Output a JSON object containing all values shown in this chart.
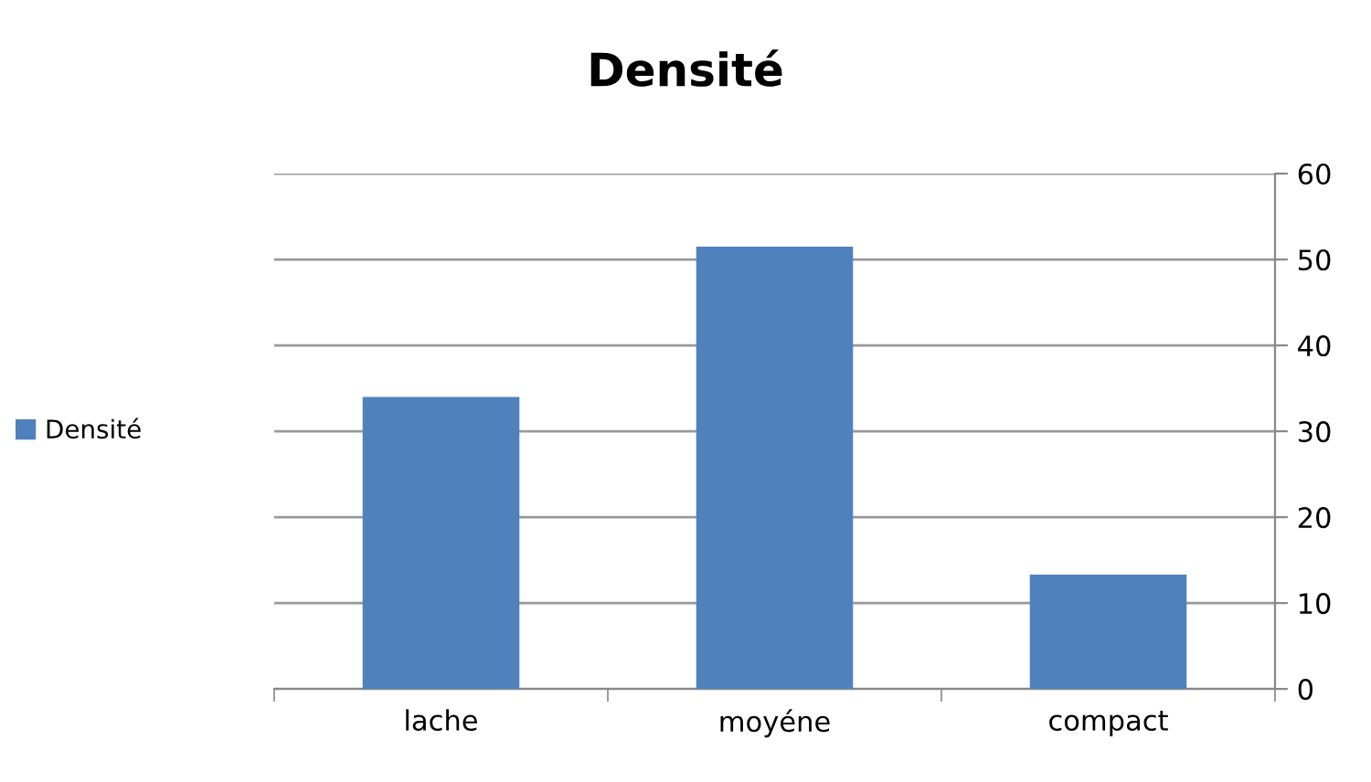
{
  "chart_data": {
    "type": "bar",
    "title": "Densité",
    "categories": [
      "lache",
      "moyéne",
      "compact"
    ],
    "series": [
      {
        "name": "Densité",
        "color": "#4f81bd",
        "values": [
          34,
          51.5,
          13.3
        ]
      }
    ],
    "ylim": [
      0,
      60
    ],
    "yticks": [
      0,
      10,
      20,
      30,
      40,
      50,
      60
    ],
    "grid": "y",
    "legend": "left"
  }
}
